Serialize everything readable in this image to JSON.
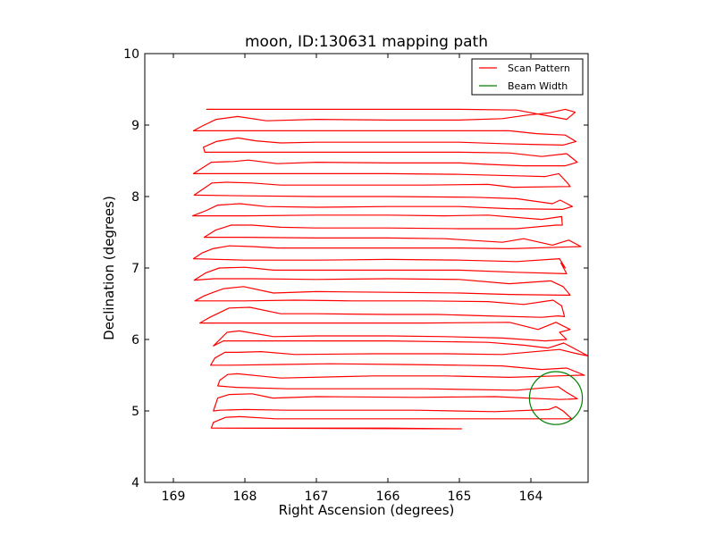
{
  "chart_data": {
    "type": "line",
    "title": "moon, ID:130631 mapping path",
    "xlabel": "Right Ascension (degrees)",
    "ylabel": "Declination (degrees)",
    "xlim": [
      169.4,
      163.2
    ],
    "ylim": [
      4,
      10
    ],
    "x_reversed": true,
    "xticks": [
      169,
      168,
      167,
      166,
      165,
      164
    ],
    "yticks": [
      4,
      5,
      6,
      7,
      8,
      9,
      10
    ],
    "grid": false,
    "legend": {
      "placement": "top-right",
      "entries": [
        {
          "label": "Scan Pattern",
          "color": "#ff0000"
        },
        {
          "label": "Beam Width",
          "color": "#008000"
        }
      ]
    },
    "series": [
      {
        "name": "Scan Pattern",
        "kind": "line",
        "color": "#ff0000",
        "points": [
          [
            168.47,
            4.76
          ],
          [
            167.95,
            4.76
          ],
          [
            167.0,
            4.76
          ],
          [
            166.0,
            4.76
          ],
          [
            164.97,
            4.75
          ],
          [
            168.47,
            4.76
          ],
          [
            168.44,
            4.84
          ],
          [
            168.27,
            4.91
          ],
          [
            168.07,
            4.92
          ],
          [
            167.57,
            4.89
          ],
          [
            167.2,
            4.89
          ],
          [
            166.0,
            4.89
          ],
          [
            164.6,
            4.89
          ],
          [
            163.5,
            4.89
          ],
          [
            163.43,
            4.89
          ],
          [
            163.55,
            5.0
          ],
          [
            163.65,
            5.06
          ],
          [
            163.75,
            5.02
          ],
          [
            164.5,
            4.99
          ],
          [
            165.6,
            5.01
          ],
          [
            167.0,
            5.01
          ],
          [
            167.42,
            5.01
          ],
          [
            168.0,
            5.02
          ],
          [
            168.35,
            5.01
          ],
          [
            168.44,
            5.0
          ],
          [
            168.38,
            5.18
          ],
          [
            168.22,
            5.23
          ],
          [
            167.9,
            5.24
          ],
          [
            167.61,
            5.18
          ],
          [
            167.0,
            5.2
          ],
          [
            165.6,
            5.19
          ],
          [
            164.5,
            5.2
          ],
          [
            163.6,
            5.16
          ],
          [
            163.35,
            5.17
          ],
          [
            163.5,
            5.26
          ],
          [
            163.62,
            5.34
          ],
          [
            164.2,
            5.29
          ],
          [
            165.5,
            5.31
          ],
          [
            166.6,
            5.31
          ],
          [
            167.4,
            5.31
          ],
          [
            168.12,
            5.33
          ],
          [
            168.38,
            5.35
          ],
          [
            168.35,
            5.43
          ],
          [
            168.24,
            5.51
          ],
          [
            168.1,
            5.52
          ],
          [
            167.8,
            5.49
          ],
          [
            167.5,
            5.46
          ],
          [
            166.2,
            5.49
          ],
          [
            165.2,
            5.49
          ],
          [
            164.3,
            5.47
          ],
          [
            163.3,
            5.5
          ],
          [
            163.25,
            5.5
          ],
          [
            163.5,
            5.6
          ],
          [
            163.85,
            5.58
          ],
          [
            164.4,
            5.63
          ],
          [
            165.0,
            5.64
          ],
          [
            165.8,
            5.65
          ],
          [
            166.8,
            5.66
          ],
          [
            167.5,
            5.65
          ],
          [
            168.2,
            5.64
          ],
          [
            168.48,
            5.64
          ],
          [
            168.42,
            5.74
          ],
          [
            168.28,
            5.82
          ],
          [
            168.1,
            5.82
          ],
          [
            167.77,
            5.83
          ],
          [
            167.3,
            5.79
          ],
          [
            166.2,
            5.8
          ],
          [
            165.2,
            5.8
          ],
          [
            164.4,
            5.79
          ],
          [
            163.6,
            5.86
          ],
          [
            163.35,
            5.8
          ],
          [
            163.2,
            5.77
          ],
          [
            163.54,
            5.95
          ],
          [
            163.76,
            5.88
          ],
          [
            164.1,
            5.92
          ],
          [
            164.6,
            5.96
          ],
          [
            166.0,
            5.98
          ],
          [
            167.4,
            5.98
          ],
          [
            168.0,
            5.98
          ],
          [
            168.3,
            5.98
          ],
          [
            168.44,
            5.91
          ],
          [
            168.25,
            6.1
          ],
          [
            168.08,
            6.12
          ],
          [
            167.6,
            6.04
          ],
          [
            167.0,
            6.05
          ],
          [
            166.0,
            6.05
          ],
          [
            165.2,
            6.04
          ],
          [
            164.4,
            6.02
          ],
          [
            163.8,
            5.98
          ],
          [
            163.5,
            6.0
          ],
          [
            163.6,
            6.1
          ],
          [
            163.45,
            6.14
          ],
          [
            163.65,
            6.24
          ],
          [
            163.9,
            6.14
          ],
          [
            164.3,
            6.24
          ],
          [
            165.5,
            6.23
          ],
          [
            167.0,
            6.23
          ],
          [
            168.0,
            6.23
          ],
          [
            168.63,
            6.23
          ],
          [
            168.49,
            6.31
          ],
          [
            168.22,
            6.44
          ],
          [
            167.93,
            6.45
          ],
          [
            167.5,
            6.36
          ],
          [
            167.0,
            6.36
          ],
          [
            166.0,
            6.35
          ],
          [
            165.3,
            6.35
          ],
          [
            164.6,
            6.33
          ],
          [
            163.85,
            6.31
          ],
          [
            163.62,
            6.33
          ],
          [
            163.53,
            6.32
          ],
          [
            163.57,
            6.47
          ],
          [
            163.69,
            6.55
          ],
          [
            164.1,
            6.49
          ],
          [
            164.6,
            6.53
          ],
          [
            165.5,
            6.54
          ],
          [
            166.5,
            6.54
          ],
          [
            167.3,
            6.55
          ],
          [
            168.0,
            6.54
          ],
          [
            168.7,
            6.54
          ],
          [
            168.57,
            6.61
          ],
          [
            168.44,
            6.66
          ],
          [
            168.3,
            6.71
          ],
          [
            168.02,
            6.74
          ],
          [
            167.6,
            6.65
          ],
          [
            167.0,
            6.67
          ],
          [
            166.0,
            6.66
          ],
          [
            165.0,
            6.65
          ],
          [
            164.3,
            6.63
          ],
          [
            163.56,
            6.62
          ],
          [
            163.45,
            6.62
          ],
          [
            163.55,
            6.74
          ],
          [
            163.72,
            6.82
          ],
          [
            164.3,
            6.78
          ],
          [
            165.0,
            6.84
          ],
          [
            166.0,
            6.85
          ],
          [
            167.0,
            6.84
          ],
          [
            167.9,
            6.85
          ],
          [
            168.43,
            6.85
          ],
          [
            168.71,
            6.83
          ],
          [
            168.55,
            6.93
          ],
          [
            168.36,
            7.0
          ],
          [
            168.0,
            7.01
          ],
          [
            167.6,
            6.97
          ],
          [
            167.0,
            6.97
          ],
          [
            166.0,
            6.97
          ],
          [
            165.0,
            6.97
          ],
          [
            164.2,
            6.94
          ],
          [
            163.5,
            6.92
          ],
          [
            163.58,
            7.07
          ],
          [
            163.52,
            7.0
          ],
          [
            163.6,
            7.13
          ],
          [
            164.2,
            7.09
          ],
          [
            165.0,
            7.11
          ],
          [
            166.0,
            7.12
          ],
          [
            167.0,
            7.11
          ],
          [
            168.0,
            7.11
          ],
          [
            168.72,
            7.13
          ],
          [
            168.6,
            7.21
          ],
          [
            168.45,
            7.27
          ],
          [
            168.22,
            7.31
          ],
          [
            167.9,
            7.3
          ],
          [
            167.55,
            7.28
          ],
          [
            167.0,
            7.28
          ],
          [
            166.0,
            7.28
          ],
          [
            165.0,
            7.28
          ],
          [
            164.3,
            7.27
          ],
          [
            163.3,
            7.3
          ],
          [
            163.47,
            7.39
          ],
          [
            163.7,
            7.32
          ],
          [
            164.1,
            7.41
          ],
          [
            164.4,
            7.36
          ],
          [
            165.2,
            7.41
          ],
          [
            166.0,
            7.42
          ],
          [
            167.0,
            7.42
          ],
          [
            168.0,
            7.43
          ],
          [
            168.45,
            7.43
          ],
          [
            168.57,
            7.43
          ],
          [
            168.41,
            7.53
          ],
          [
            168.19,
            7.6
          ],
          [
            167.9,
            7.6
          ],
          [
            167.5,
            7.57
          ],
          [
            167.0,
            7.56
          ],
          [
            166.0,
            7.56
          ],
          [
            165.0,
            7.55
          ],
          [
            164.2,
            7.55
          ],
          [
            163.65,
            7.6
          ],
          [
            163.56,
            7.6
          ],
          [
            163.57,
            7.72
          ],
          [
            163.85,
            7.68
          ],
          [
            164.6,
            7.74
          ],
          [
            165.2,
            7.73
          ],
          [
            166.0,
            7.74
          ],
          [
            167.0,
            7.74
          ],
          [
            168.0,
            7.73
          ],
          [
            168.73,
            7.73
          ],
          [
            168.55,
            7.8
          ],
          [
            168.38,
            7.88
          ],
          [
            168.07,
            7.9
          ],
          [
            167.7,
            7.86
          ],
          [
            167.0,
            7.85
          ],
          [
            166.0,
            7.86
          ],
          [
            165.0,
            7.86
          ],
          [
            164.3,
            7.83
          ],
          [
            163.56,
            7.82
          ],
          [
            163.42,
            7.86
          ],
          [
            163.59,
            7.95
          ],
          [
            163.7,
            7.9
          ],
          [
            164.2,
            7.97
          ],
          [
            164.8,
            7.99
          ],
          [
            166.0,
            8.0
          ],
          [
            167.0,
            8.0
          ],
          [
            168.0,
            8.01
          ],
          [
            168.71,
            8.02
          ],
          [
            168.46,
            8.19
          ],
          [
            168.26,
            8.2
          ],
          [
            167.9,
            8.19
          ],
          [
            167.5,
            8.16
          ],
          [
            166.5,
            8.16
          ],
          [
            165.5,
            8.16
          ],
          [
            164.6,
            8.17
          ],
          [
            164.25,
            8.13
          ],
          [
            163.45,
            8.14
          ],
          [
            163.48,
            8.18
          ],
          [
            163.61,
            8.32
          ],
          [
            163.8,
            8.28
          ],
          [
            164.2,
            8.29
          ],
          [
            165.0,
            8.31
          ],
          [
            166.0,
            8.32
          ],
          [
            167.0,
            8.32
          ],
          [
            168.0,
            8.32
          ],
          [
            168.72,
            8.32
          ],
          [
            168.47,
            8.48
          ],
          [
            168.16,
            8.49
          ],
          [
            167.95,
            8.51
          ],
          [
            167.55,
            8.46
          ],
          [
            167.0,
            8.48
          ],
          [
            166.0,
            8.47
          ],
          [
            165.0,
            8.47
          ],
          [
            164.6,
            8.45
          ],
          [
            164.1,
            8.43
          ],
          [
            163.52,
            8.43
          ],
          [
            163.35,
            8.48
          ],
          [
            163.5,
            8.6
          ],
          [
            163.85,
            8.56
          ],
          [
            164.3,
            8.61
          ],
          [
            165.0,
            8.62
          ],
          [
            166.0,
            8.62
          ],
          [
            167.0,
            8.62
          ],
          [
            168.0,
            8.62
          ],
          [
            168.56,
            8.62
          ],
          [
            168.58,
            8.69
          ],
          [
            168.4,
            8.77
          ],
          [
            168.1,
            8.82
          ],
          [
            167.85,
            8.78
          ],
          [
            167.5,
            8.75
          ],
          [
            167.0,
            8.76
          ],
          [
            166.0,
            8.76
          ],
          [
            165.0,
            8.76
          ],
          [
            164.4,
            8.74
          ],
          [
            164.0,
            8.73
          ],
          [
            163.55,
            8.72
          ],
          [
            163.37,
            8.77
          ],
          [
            163.52,
            8.86
          ],
          [
            163.92,
            8.88
          ],
          [
            164.3,
            8.92
          ],
          [
            165.0,
            8.92
          ],
          [
            166.0,
            8.92
          ],
          [
            167.0,
            8.92
          ],
          [
            168.0,
            8.92
          ],
          [
            168.72,
            8.92
          ],
          [
            168.57,
            9.0
          ],
          [
            168.4,
            9.08
          ],
          [
            168.1,
            9.12
          ],
          [
            167.7,
            9.06
          ],
          [
            167.0,
            9.08
          ],
          [
            166.0,
            9.07
          ],
          [
            165.0,
            9.07
          ],
          [
            164.4,
            9.09
          ],
          [
            164.05,
            9.14
          ],
          [
            163.75,
            9.17
          ],
          [
            163.52,
            9.22
          ],
          [
            163.38,
            9.18
          ],
          [
            163.5,
            9.08
          ],
          [
            164.2,
            9.21
          ],
          [
            165.0,
            9.22
          ],
          [
            166.0,
            9.22
          ],
          [
            167.0,
            9.22
          ],
          [
            168.0,
            9.22
          ],
          [
            168.54,
            9.22
          ]
        ]
      },
      {
        "name": "Beam Width",
        "kind": "circle",
        "color": "#008000",
        "center": [
          163.65,
          5.18
        ],
        "radius_deg": 0.37
      }
    ]
  }
}
